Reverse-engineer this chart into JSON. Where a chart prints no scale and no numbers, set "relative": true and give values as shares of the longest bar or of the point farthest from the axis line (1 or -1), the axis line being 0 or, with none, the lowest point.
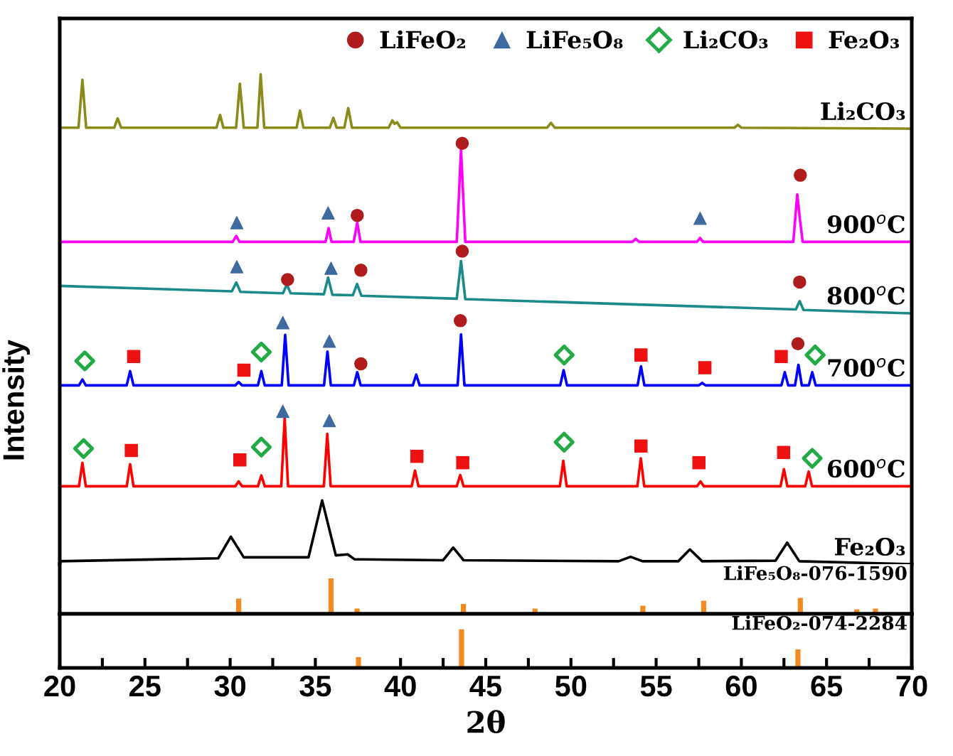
{
  "chart_data": [
    {
      "type": "line",
      "relative": true,
      "ylabel": "Intensity",
      "xlim": [
        20,
        70
      ],
      "tick_labels": false,
      "legend": "top right",
      "grid": false,
      "series": [
        {
          "name": "Li₂CO₃",
          "color": "#8b8b1a",
          "x": [
            20,
            21.1,
            21.33,
            21.55,
            23.2,
            23.4,
            23.6,
            29.2,
            29.41,
            29.6,
            30.35,
            30.57,
            30.8,
            31.6,
            31.79,
            32.0,
            33.9,
            34.1,
            34.3,
            35.85,
            36.06,
            36.25,
            36.7,
            36.93,
            37.15,
            39.3,
            39.52,
            39.65,
            39.8,
            40.0,
            48.6,
            48.83,
            49.05,
            59.6,
            59.8,
            60.0,
            70
          ],
          "values": [
            0.891,
            0.891,
            0.989,
            0.891,
            0.891,
            0.91,
            0.891,
            0.891,
            0.917,
            0.891,
            0.891,
            0.981,
            0.891,
            0.891,
            1.0,
            0.891,
            0.891,
            0.926,
            0.891,
            0.891,
            0.911,
            0.891,
            0.891,
            0.931,
            0.891,
            0.891,
            0.906,
            0.899,
            0.902,
            0.891,
            0.891,
            0.901,
            0.891,
            0.891,
            0.897,
            0.891,
            0.889
          ]
        },
        {
          "name": "900$^{o}$C",
          "color": "#ff00ff",
          "x": [
            20,
            30.15,
            30.36,
            30.55,
            35.6,
            35.78,
            35.95,
            37.25,
            37.46,
            37.65,
            43.3,
            43.55,
            43.8,
            53.6,
            53.8,
            54.0,
            57.4,
            57.58,
            57.75,
            63.05,
            63.28,
            63.45,
            63.6,
            70
          ],
          "values": [
            0.658,
            0.658,
            0.67,
            0.658,
            0.658,
            0.686,
            0.658,
            0.658,
            0.697,
            0.658,
            0.658,
            0.847,
            0.658,
            0.658,
            0.664,
            0.658,
            0.658,
            0.666,
            0.658,
            0.658,
            0.755,
            0.7,
            0.658,
            0.658
          ]
        },
        {
          "name": "800$^{o}$C",
          "color": "#1a8a8a",
          "x": [
            20,
            30.1,
            30.36,
            30.6,
            33.1,
            33.33,
            33.55,
            35.5,
            35.75,
            36.0,
            37.2,
            37.45,
            37.7,
            43.3,
            43.55,
            43.8,
            63.2,
            63.42,
            63.65,
            70
          ],
          "values": [
            0.568,
            0.557,
            0.575,
            0.556,
            0.553,
            0.571,
            0.553,
            0.551,
            0.585,
            0.55,
            0.549,
            0.572,
            0.548,
            0.542,
            0.619,
            0.541,
            0.52,
            0.537,
            0.519,
            0.512
          ]
        },
        {
          "name": "700$^{o}$C",
          "color": "#0000ff",
          "x": [
            20,
            21.13,
            21.33,
            21.53,
            23.93,
            24.13,
            24.33,
            30.3,
            30.5,
            30.7,
            31.63,
            31.83,
            32.03,
            33.03,
            33.23,
            33.43,
            35.51,
            35.71,
            35.91,
            37.26,
            37.46,
            37.66,
            40.72,
            40.92,
            41.12,
            43.35,
            43.55,
            43.75,
            49.37,
            49.57,
            49.77,
            53.91,
            54.11,
            54.31,
            57.5,
            57.7,
            57.9,
            62.35,
            62.55,
            62.75,
            63.15,
            63.35,
            63.55,
            63.96,
            64.16,
            64.36,
            70
          ],
          "values": [
            0.365,
            0.365,
            0.377,
            0.365,
            0.365,
            0.394,
            0.365,
            0.365,
            0.372,
            0.365,
            0.365,
            0.394,
            0.365,
            0.365,
            0.468,
            0.365,
            0.365,
            0.434,
            0.365,
            0.365,
            0.392,
            0.365,
            0.365,
            0.387,
            0.365,
            0.365,
            0.469,
            0.365,
            0.365,
            0.396,
            0.365,
            0.365,
            0.404,
            0.365,
            0.365,
            0.37,
            0.365,
            0.365,
            0.392,
            0.365,
            0.365,
            0.407,
            0.365,
            0.365,
            0.392,
            0.365,
            0.365
          ]
        },
        {
          "name": "600$^{o}$C",
          "color": "#ff0000",
          "x": [
            20,
            21.13,
            21.33,
            21.53,
            23.93,
            24.13,
            24.33,
            30.3,
            30.5,
            30.7,
            31.63,
            31.83,
            32.03,
            33.0,
            33.2,
            33.4,
            35.5,
            35.7,
            35.9,
            40.65,
            40.85,
            41.05,
            43.3,
            43.5,
            43.7,
            49.35,
            49.55,
            49.75,
            53.9,
            54.1,
            54.3,
            57.4,
            57.6,
            57.8,
            62.3,
            62.5,
            62.7,
            63.75,
            63.95,
            64.15,
            70
          ],
          "values": [
            0.159,
            0.159,
            0.207,
            0.159,
            0.159,
            0.204,
            0.159,
            0.159,
            0.169,
            0.159,
            0.159,
            0.181,
            0.159,
            0.159,
            0.298,
            0.159,
            0.159,
            0.266,
            0.159,
            0.159,
            0.191,
            0.159,
            0.159,
            0.182,
            0.159,
            0.159,
            0.211,
            0.159,
            0.159,
            0.216,
            0.159,
            0.159,
            0.169,
            0.159,
            0.159,
            0.194,
            0.159,
            0.159,
            0.189,
            0.159,
            0.159
          ]
        },
        {
          "name": "Fe₂O₃",
          "color": "#000000",
          "x": [
            20,
            29.3,
            30.04,
            30.8,
            34.6,
            35.4,
            36.2,
            36.9,
            37.3,
            42.5,
            43.09,
            43.7,
            52.8,
            53.5,
            54.2,
            56.3,
            56.98,
            57.7,
            62.0,
            62.69,
            63.4,
            70
          ],
          "values": [
            0.006,
            0.012,
            0.056,
            0.014,
            0.014,
            0.13,
            0.018,
            0.02,
            0.01,
            0.008,
            0.034,
            0.008,
            0.006,
            0.015,
            0.006,
            0.006,
            0.03,
            0.006,
            0.007,
            0.044,
            0.006,
            0.0
          ]
        },
        {
          "name": "LiFeO₂",
          "type": "scatter",
          "marker": "circle",
          "color": "#b01c1c",
          "x": [
            43.62,
            37.46,
            63.46,
            43.62,
            33.37,
            37.67,
            63.42,
            43.51,
            37.67,
            63.32
          ],
          "values": [
            0.859,
            0.712,
            0.794,
            0.639,
            0.581,
            0.6,
            0.576,
            0.497,
            0.409,
            0.45
          ]
        },
        {
          "name": "LiFe₅O₈",
          "type": "scatter",
          "marker": "triangle",
          "color": "#3f6aa0",
          "x": [
            30.39,
            35.75,
            57.58,
            30.39,
            35.92,
            33.09,
            35.82,
            33.09,
            35.82
          ],
          "values": [
            0.697,
            0.717,
            0.706,
            0.607,
            0.604,
            0.493,
            0.455,
            0.312,
            0.293
          ]
        },
        {
          "name": "Li₂CO₃",
          "type": "scatter",
          "marker": "diamond",
          "color": "#22aa44",
          "x": [
            21.47,
            31.83,
            49.6,
            64.33,
            21.4,
            31.83,
            49.6,
            64.16
          ],
          "values": [
            0.415,
            0.433,
            0.427,
            0.427,
            0.236,
            0.239,
            0.249,
            0.216
          ]
        },
        {
          "name": "Fe₂O₃",
          "type": "scatter",
          "marker": "square",
          "color": "#ee1111",
          "x": [
            24.34,
            30.81,
            54.11,
            57.86,
            62.34,
            24.2,
            30.57,
            40.96,
            43.65,
            54.11,
            57.51,
            62.48
          ],
          "values": [
            0.424,
            0.396,
            0.427,
            0.401,
            0.424,
            0.232,
            0.213,
            0.22,
            0.207,
            0.241,
            0.207,
            0.228
          ]
        }
      ]
    },
    {
      "type": "bar",
      "relative": true,
      "xlim": [
        20,
        70
      ],
      "tick_labels": false,
      "grid": false,
      "series": [
        {
          "name": "LiFe₅O₈-076-1590",
          "color": "#f28a1e",
          "x": [
            30.5,
            35.92,
            37.45,
            43.69,
            47.89,
            54.22,
            57.79,
            63.46,
            66.78,
            67.87
          ],
          "values": [
            0.43,
            1,
            0.15,
            0.28,
            0.15,
            0.23,
            0.37,
            0.45,
            0.13,
            0.15
          ]
        }
      ]
    },
    {
      "type": "bar",
      "relative": true,
      "xlim": [
        20,
        70
      ],
      "xlabel": "2θ",
      "tick_labels": "x",
      "grid": false,
      "xticks": [
        20,
        {
          "value": 22.5,
          "label": null
        },
        25,
        {
          "value": 27.5,
          "label": null
        },
        30,
        {
          "value": 32.5,
          "label": null
        },
        35,
        {
          "value": 37.5,
          "label": null
        },
        40,
        {
          "value": 42.5,
          "label": null
        },
        45,
        {
          "value": 47.5,
          "label": null
        },
        50,
        {
          "value": 52.5,
          "label": null
        },
        55,
        {
          "value": 57.5,
          "label": null
        },
        60,
        {
          "value": 62.5,
          "label": null
        },
        65,
        {
          "value": 67.5,
          "label": null
        },
        70
      ],
      "series": [
        {
          "name": "LiFeO₂-074-2284",
          "color": "#f28a1e",
          "x": [
            37.53,
            43.58,
            63.32
          ],
          "values": [
            0.28,
            1,
            0.48
          ]
        }
      ]
    }
  ]
}
